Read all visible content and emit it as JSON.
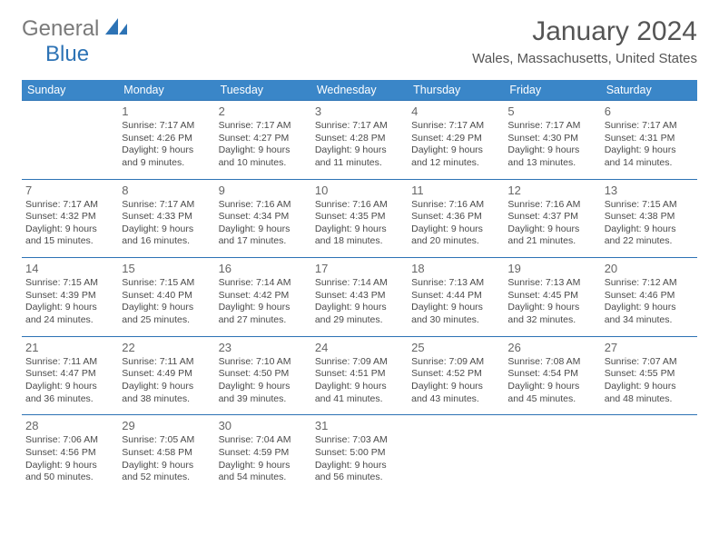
{
  "logo": {
    "part1": "General",
    "part2": "Blue"
  },
  "title": "January 2024",
  "location": "Wales, Massachusetts, United States",
  "colors": {
    "header_bg": "#3a86c8",
    "header_text": "#ffffff",
    "row_border": "#2d73b5",
    "text": "#4a4a4a",
    "logo_gray": "#7a7a7a",
    "logo_blue": "#2d73b5",
    "background": "#ffffff"
  },
  "day_headers": [
    "Sunday",
    "Monday",
    "Tuesday",
    "Wednesday",
    "Thursday",
    "Friday",
    "Saturday"
  ],
  "weeks": [
    [
      null,
      {
        "day": "1",
        "sunrise": "Sunrise: 7:17 AM",
        "sunset": "Sunset: 4:26 PM",
        "daylight1": "Daylight: 9 hours",
        "daylight2": "and 9 minutes."
      },
      {
        "day": "2",
        "sunrise": "Sunrise: 7:17 AM",
        "sunset": "Sunset: 4:27 PM",
        "daylight1": "Daylight: 9 hours",
        "daylight2": "and 10 minutes."
      },
      {
        "day": "3",
        "sunrise": "Sunrise: 7:17 AM",
        "sunset": "Sunset: 4:28 PM",
        "daylight1": "Daylight: 9 hours",
        "daylight2": "and 11 minutes."
      },
      {
        "day": "4",
        "sunrise": "Sunrise: 7:17 AM",
        "sunset": "Sunset: 4:29 PM",
        "daylight1": "Daylight: 9 hours",
        "daylight2": "and 12 minutes."
      },
      {
        "day": "5",
        "sunrise": "Sunrise: 7:17 AM",
        "sunset": "Sunset: 4:30 PM",
        "daylight1": "Daylight: 9 hours",
        "daylight2": "and 13 minutes."
      },
      {
        "day": "6",
        "sunrise": "Sunrise: 7:17 AM",
        "sunset": "Sunset: 4:31 PM",
        "daylight1": "Daylight: 9 hours",
        "daylight2": "and 14 minutes."
      }
    ],
    [
      {
        "day": "7",
        "sunrise": "Sunrise: 7:17 AM",
        "sunset": "Sunset: 4:32 PM",
        "daylight1": "Daylight: 9 hours",
        "daylight2": "and 15 minutes."
      },
      {
        "day": "8",
        "sunrise": "Sunrise: 7:17 AM",
        "sunset": "Sunset: 4:33 PM",
        "daylight1": "Daylight: 9 hours",
        "daylight2": "and 16 minutes."
      },
      {
        "day": "9",
        "sunrise": "Sunrise: 7:16 AM",
        "sunset": "Sunset: 4:34 PM",
        "daylight1": "Daylight: 9 hours",
        "daylight2": "and 17 minutes."
      },
      {
        "day": "10",
        "sunrise": "Sunrise: 7:16 AM",
        "sunset": "Sunset: 4:35 PM",
        "daylight1": "Daylight: 9 hours",
        "daylight2": "and 18 minutes."
      },
      {
        "day": "11",
        "sunrise": "Sunrise: 7:16 AM",
        "sunset": "Sunset: 4:36 PM",
        "daylight1": "Daylight: 9 hours",
        "daylight2": "and 20 minutes."
      },
      {
        "day": "12",
        "sunrise": "Sunrise: 7:16 AM",
        "sunset": "Sunset: 4:37 PM",
        "daylight1": "Daylight: 9 hours",
        "daylight2": "and 21 minutes."
      },
      {
        "day": "13",
        "sunrise": "Sunrise: 7:15 AM",
        "sunset": "Sunset: 4:38 PM",
        "daylight1": "Daylight: 9 hours",
        "daylight2": "and 22 minutes."
      }
    ],
    [
      {
        "day": "14",
        "sunrise": "Sunrise: 7:15 AM",
        "sunset": "Sunset: 4:39 PM",
        "daylight1": "Daylight: 9 hours",
        "daylight2": "and 24 minutes."
      },
      {
        "day": "15",
        "sunrise": "Sunrise: 7:15 AM",
        "sunset": "Sunset: 4:40 PM",
        "daylight1": "Daylight: 9 hours",
        "daylight2": "and 25 minutes."
      },
      {
        "day": "16",
        "sunrise": "Sunrise: 7:14 AM",
        "sunset": "Sunset: 4:42 PM",
        "daylight1": "Daylight: 9 hours",
        "daylight2": "and 27 minutes."
      },
      {
        "day": "17",
        "sunrise": "Sunrise: 7:14 AM",
        "sunset": "Sunset: 4:43 PM",
        "daylight1": "Daylight: 9 hours",
        "daylight2": "and 29 minutes."
      },
      {
        "day": "18",
        "sunrise": "Sunrise: 7:13 AM",
        "sunset": "Sunset: 4:44 PM",
        "daylight1": "Daylight: 9 hours",
        "daylight2": "and 30 minutes."
      },
      {
        "day": "19",
        "sunrise": "Sunrise: 7:13 AM",
        "sunset": "Sunset: 4:45 PM",
        "daylight1": "Daylight: 9 hours",
        "daylight2": "and 32 minutes."
      },
      {
        "day": "20",
        "sunrise": "Sunrise: 7:12 AM",
        "sunset": "Sunset: 4:46 PM",
        "daylight1": "Daylight: 9 hours",
        "daylight2": "and 34 minutes."
      }
    ],
    [
      {
        "day": "21",
        "sunrise": "Sunrise: 7:11 AM",
        "sunset": "Sunset: 4:47 PM",
        "daylight1": "Daylight: 9 hours",
        "daylight2": "and 36 minutes."
      },
      {
        "day": "22",
        "sunrise": "Sunrise: 7:11 AM",
        "sunset": "Sunset: 4:49 PM",
        "daylight1": "Daylight: 9 hours",
        "daylight2": "and 38 minutes."
      },
      {
        "day": "23",
        "sunrise": "Sunrise: 7:10 AM",
        "sunset": "Sunset: 4:50 PM",
        "daylight1": "Daylight: 9 hours",
        "daylight2": "and 39 minutes."
      },
      {
        "day": "24",
        "sunrise": "Sunrise: 7:09 AM",
        "sunset": "Sunset: 4:51 PM",
        "daylight1": "Daylight: 9 hours",
        "daylight2": "and 41 minutes."
      },
      {
        "day": "25",
        "sunrise": "Sunrise: 7:09 AM",
        "sunset": "Sunset: 4:52 PM",
        "daylight1": "Daylight: 9 hours",
        "daylight2": "and 43 minutes."
      },
      {
        "day": "26",
        "sunrise": "Sunrise: 7:08 AM",
        "sunset": "Sunset: 4:54 PM",
        "daylight1": "Daylight: 9 hours",
        "daylight2": "and 45 minutes."
      },
      {
        "day": "27",
        "sunrise": "Sunrise: 7:07 AM",
        "sunset": "Sunset: 4:55 PM",
        "daylight1": "Daylight: 9 hours",
        "daylight2": "and 48 minutes."
      }
    ],
    [
      {
        "day": "28",
        "sunrise": "Sunrise: 7:06 AM",
        "sunset": "Sunset: 4:56 PM",
        "daylight1": "Daylight: 9 hours",
        "daylight2": "and 50 minutes."
      },
      {
        "day": "29",
        "sunrise": "Sunrise: 7:05 AM",
        "sunset": "Sunset: 4:58 PM",
        "daylight1": "Daylight: 9 hours",
        "daylight2": "and 52 minutes."
      },
      {
        "day": "30",
        "sunrise": "Sunrise: 7:04 AM",
        "sunset": "Sunset: 4:59 PM",
        "daylight1": "Daylight: 9 hours",
        "daylight2": "and 54 minutes."
      },
      {
        "day": "31",
        "sunrise": "Sunrise: 7:03 AM",
        "sunset": "Sunset: 5:00 PM",
        "daylight1": "Daylight: 9 hours",
        "daylight2": "and 56 minutes."
      },
      null,
      null,
      null
    ]
  ]
}
